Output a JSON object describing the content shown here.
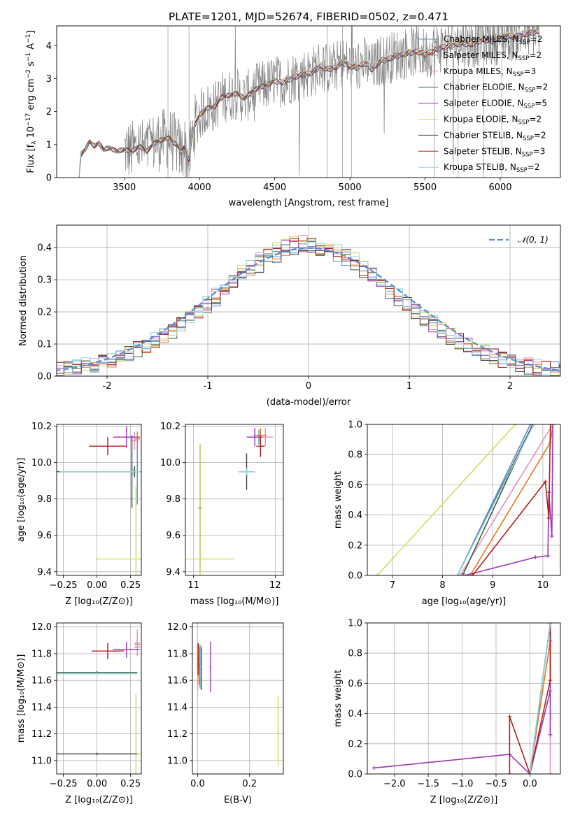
{
  "chart_data": [
    {
      "id": "spectrum",
      "type": "line",
      "title": "PLATE=1201, MJD=52674, FIBERID=0502, z=0.471",
      "xlabel": "wavelength [Angstrom, rest frame]",
      "ylabel": "Flux [f$_\\lambda$ 10$^{-17}$ erg cm$^{-2}$ s$^{-1}$ A$^{-1}$]",
      "ylabel_parts": {
        "a": "Flux [f",
        "b": "λ",
        "c": "10",
        "d": "−17",
        "e": " erg cm",
        "f": "−2",
        "g": " s",
        "h": "−1",
        "i": " A",
        "j": "−1",
        "k": "]"
      },
      "xlim": [
        3050,
        6400
      ],
      "ylim": [
        0,
        4.6
      ],
      "xticks": [
        3500,
        4000,
        4500,
        5000,
        5500,
        6000
      ],
      "yticks": [
        0,
        1,
        2,
        3,
        4
      ],
      "grid": false,
      "legend_position": "top-right",
      "data_color": "#808080",
      "model_envelope": [
        [
          3200,
          0
        ],
        [
          3210,
          0.7
        ],
        [
          3240,
          0.85
        ],
        [
          3270,
          1.1
        ],
        [
          3300,
          0.95
        ],
        [
          3330,
          1.05
        ],
        [
          3360,
          0.85
        ],
        [
          3400,
          0.9
        ],
        [
          3450,
          0.8
        ],
        [
          3500,
          0.85
        ],
        [
          3550,
          0.8
        ],
        [
          3600,
          0.95
        ],
        [
          3650,
          0.8
        ],
        [
          3700,
          1.05
        ],
        [
          3750,
          1.15
        ],
        [
          3800,
          1.2
        ],
        [
          3830,
          1.05
        ],
        [
          3850,
          1.0
        ],
        [
          3880,
          0.75
        ],
        [
          3900,
          0.95
        ],
        [
          3930,
          0.5
        ],
        [
          3950,
          1.2
        ],
        [
          3970,
          1.6
        ],
        [
          4000,
          1.9
        ],
        [
          4050,
          2.1
        ],
        [
          4100,
          2.15
        ],
        [
          4150,
          2.45
        ],
        [
          4200,
          2.5
        ],
        [
          4250,
          2.55
        ],
        [
          4300,
          2.4
        ],
        [
          4350,
          2.6
        ],
        [
          4400,
          2.75
        ],
        [
          4450,
          2.8
        ],
        [
          4500,
          2.95
        ],
        [
          4550,
          2.9
        ],
        [
          4600,
          3.0
        ],
        [
          4650,
          3.1
        ],
        [
          4700,
          3.15
        ],
        [
          4750,
          3.2
        ],
        [
          4800,
          3.4
        ],
        [
          4850,
          3.3
        ],
        [
          4900,
          3.35
        ],
        [
          4950,
          3.5
        ],
        [
          5000,
          3.4
        ],
        [
          5050,
          3.35
        ],
        [
          5100,
          3.5
        ],
        [
          5150,
          3.3
        ],
        [
          5200,
          3.55
        ],
        [
          5250,
          3.6
        ],
        [
          5300,
          3.7
        ],
        [
          5350,
          3.75
        ],
        [
          5400,
          3.8
        ],
        [
          5450,
          3.85
        ],
        [
          5500,
          3.75
        ],
        [
          5550,
          3.85
        ],
        [
          5600,
          3.95
        ],
        [
          5650,
          4.0
        ],
        [
          5700,
          4.05
        ],
        [
          5750,
          4.1
        ],
        [
          5800,
          4.05
        ],
        [
          5850,
          4.15
        ],
        [
          5900,
          4.2
        ],
        [
          5950,
          4.15
        ],
        [
          6000,
          4.25
        ],
        [
          6050,
          4.3
        ],
        [
          6100,
          4.3
        ],
        [
          6150,
          4.35
        ],
        [
          6200,
          4.4
        ],
        [
          6250,
          4.45
        ]
      ],
      "series": [
        {
          "name": "Chabrier MILES, N$_{SSP}$=2",
          "label_main": "Chabrier MILES, N",
          "label_sub": "SSP",
          "label_tail": "=2",
          "color": "#5b8bd8"
        },
        {
          "name": "Salpeter MILES, N$_{SSP}$=2",
          "label_main": "Salpeter MILES, N",
          "label_sub": "SSP",
          "label_tail": "=2",
          "color": "#e8771e"
        },
        {
          "name": "Kroupa MILES, N$_{SSP}$=3",
          "label_main": "Kroupa MILES, N",
          "label_sub": "SSP",
          "label_tail": "=3",
          "color": "#e68fc0"
        },
        {
          "name": "Chabrier ELODIE, N$_{SSP}$=2",
          "label_main": "Chabrier ELODIE, N",
          "label_sub": "SSP",
          "label_tail": "=2",
          "color": "#3a5f3a"
        },
        {
          "name": "Salpeter ELODIE, N$_{SSP}$=5",
          "label_main": "Salpeter ELODIE, N",
          "label_sub": "SSP",
          "label_tail": "=5",
          "color": "#9c36b5"
        },
        {
          "name": "Kroupa ELODIE, N$_{SSP}$=2",
          "label_main": "Kroupa ELODIE, N",
          "label_sub": "SSP",
          "label_tail": "=2",
          "color": "#c5e35c"
        },
        {
          "name": "Chabrier STELIB, N$_{SSP}$=2",
          "label_main": "Chabrier STELIB, N",
          "label_sub": "SSP",
          "label_tail": "=2",
          "color": "#444444"
        },
        {
          "name": "Salpeter STELIB, N$_{SSP}$=3",
          "label_main": "Salpeter STELIB, N",
          "label_sub": "SSP",
          "label_tail": "=3",
          "color": "#b01f1f"
        },
        {
          "name": "Kroupa STELIB, N$_{SSP}$=2",
          "label_main": "Kroupa STELIB, N",
          "label_sub": "SSP",
          "label_tail": "=2",
          "color": "#8fd3dc"
        }
      ]
    },
    {
      "id": "residuals",
      "type": "line",
      "xlabel": "(data-model)/error",
      "ylabel": "Normed distribution",
      "xlim": [
        -2.5,
        2.5
      ],
      "ylim": [
        0,
        0.47
      ],
      "xticks": [
        -2,
        -1,
        0,
        1,
        2
      ],
      "yticks": [
        0.0,
        0.1,
        0.2,
        0.3,
        0.4
      ],
      "grid": true,
      "legend_position": "top-right",
      "gaussian_label": "$\\mathcal{N}(0,1)$",
      "gaussian_label_text": "𝒩(0, 1)",
      "gaussian_color": "#5b8bd8",
      "histogram_center": [
        0.017,
        0.02,
        0.023,
        0.027,
        0.032,
        0.038,
        0.044,
        0.052,
        0.061,
        0.071,
        0.083,
        0.096,
        0.11,
        0.126,
        0.144,
        0.162,
        0.182,
        0.203,
        0.225,
        0.247,
        0.27,
        0.293,
        0.314,
        0.335,
        0.354,
        0.371,
        0.385,
        0.397,
        0.405,
        0.41,
        0.41,
        0.405,
        0.397,
        0.385,
        0.371,
        0.354,
        0.335,
        0.314,
        0.293,
        0.27,
        0.247,
        0.225,
        0.203,
        0.182,
        0.162,
        0.144,
        0.126,
        0.11,
        0.096,
        0.083,
        0.071,
        0.061,
        0.052,
        0.044,
        0.038,
        0.032,
        0.027,
        0.023,
        0.02,
        0.017
      ]
    },
    {
      "id": "age-vs-Z",
      "type": "scatter",
      "xlabel": "Z [log$_{10}$(Z/Z$_\\odot$)]",
      "xlabel_text": "Z [log₁₀(Z/Z⊙)]",
      "ylabel": "age  [log$_{10}$(age/yr)]",
      "ylabel_text": "age  [log₁₀(age/yr)]",
      "xlim": [
        -0.3,
        0.33
      ],
      "ylim": [
        9.38,
        10.21
      ],
      "xticks": [
        -0.25,
        0.0,
        0.25
      ],
      "xticklabels": [
        "−0.25",
        "0.00",
        "0.25"
      ],
      "yticks": [
        9.4,
        9.6,
        9.8,
        10.0,
        10.2
      ],
      "grid": true
    },
    {
      "id": "age-vs-mass",
      "type": "scatter",
      "xlabel": "mass [log$_{10}$(M/M$_\\odot$)]",
      "xlabel_text": "mass [log₁₀(M/M⊙)]",
      "xlim": [
        10.9,
        12.1
      ],
      "ylim": [
        9.38,
        10.21
      ],
      "xticks": [
        11,
        12
      ],
      "yticks": [
        9.4,
        9.6,
        9.8,
        10.0,
        10.2
      ],
      "grid": true
    },
    {
      "id": "massweight-vs-age",
      "type": "line",
      "xlabel": "age  [log$_{10}$(age/yr)]",
      "xlabel_text": "age  [log₁₀(age/yr)]",
      "ylabel": "mass weight",
      "xlim": [
        6.5,
        10.35
      ],
      "ylim": [
        0,
        1.0
      ],
      "xticks": [
        7,
        8,
        9,
        10
      ],
      "yticks": [
        0.0,
        0.2,
        0.4,
        0.6,
        0.8,
        1.0
      ],
      "grid": true
    },
    {
      "id": "mass-vs-Z",
      "type": "scatter",
      "xlabel": "Z [log$_{10}$(Z/Z$_\\odot$)]",
      "xlabel_text": "Z [log₁₀(Z/Z⊙)]",
      "ylabel": "mass [log$_{10}$(M/M$_\\odot$)]",
      "ylabel_text": "mass [log₁₀(M/M⊙)]",
      "xlim": [
        -0.3,
        0.33
      ],
      "ylim": [
        10.9,
        12.03
      ],
      "xticks": [
        -0.25,
        0.0,
        0.25
      ],
      "xticklabels": [
        "−0.25",
        "0.00",
        "0.25"
      ],
      "yticks": [
        11.0,
        11.2,
        11.4,
        11.6,
        11.8,
        12.0
      ],
      "grid": true
    },
    {
      "id": "mass-vs-EBV",
      "type": "scatter",
      "xlabel": "E(B-V)",
      "xlim": [
        -0.02,
        0.33
      ],
      "ylim": [
        10.9,
        12.03
      ],
      "xticks": [
        0.0,
        0.2
      ],
      "xticklabels": [
        "0.0",
        "0.2"
      ],
      "yticks": [
        11.0,
        11.2,
        11.4,
        11.6,
        11.8,
        12.0
      ],
      "grid": true
    },
    {
      "id": "massweight-vs-Z",
      "type": "line",
      "xlabel": "Z [log$_{10}$(Z/Z$_\\odot$)]",
      "xlabel_text": "Z [log₁₀(Z/Z⊙)]",
      "ylabel": "mass weight",
      "xlim": [
        -2.4,
        0.45
      ],
      "ylim": [
        0,
        1.0
      ],
      "xticks": [
        -2.0,
        -1.5,
        -1.0,
        -0.5,
        0.0
      ],
      "xticklabels": [
        "−2.0",
        "−1.5",
        "−1.0",
        "−0.5",
        "0.0"
      ],
      "yticks": [
        0.0,
        0.2,
        0.4,
        0.6,
        0.8,
        1.0
      ],
      "grid": true
    }
  ],
  "model_points": {
    "age_Z": [
      {
        "c": 0,
        "x": 0.3,
        "y": 9.95,
        "xe": 0.3,
        "ye": 0.18
      },
      {
        "c": 1,
        "x": 0.3,
        "y": 10.13,
        "xe": 0.02,
        "ye": 0.04
      },
      {
        "c": 2,
        "x": 0.28,
        "y": 10.12,
        "xe": 0.03,
        "ye": 0.05
      },
      {
        "c": 3,
        "x": 0.28,
        "y": 9.95,
        "xe": 0.58,
        "ye": 0.03
      },
      {
        "c": 4,
        "x": 0.22,
        "y": 10.14,
        "xe": 0.1,
        "ye": 0.06
      },
      {
        "c": 5,
        "x": 0.29,
        "y": 9.47,
        "xe": 0.3,
        "ye": 0.4
      },
      {
        "c": 6,
        "x": 0.26,
        "y": 9.95,
        "xe": 0.55,
        "ye": 0.2
      },
      {
        "c": 7,
        "x": 0.08,
        "y": 10.09,
        "xe": 0.14,
        "ye": 0.05
      },
      {
        "c": 8,
        "x": 0.27,
        "y": 9.95,
        "xe": 0.55,
        "ye": 0.02
      }
    ],
    "age_mass": [
      {
        "c": 0,
        "x": 11.8,
        "y": 10.14,
        "xe": 0.08,
        "ye": 0.04
      },
      {
        "c": 1,
        "x": 11.82,
        "y": 10.15,
        "xe": 0.08,
        "ye": 0.04
      },
      {
        "c": 2,
        "x": 11.88,
        "y": 10.14,
        "xe": 0.1,
        "ye": 0.05
      },
      {
        "c": 3,
        "x": 11.08,
        "y": 9.75,
        "xe": 0.02,
        "ye": 0.35
      },
      {
        "c": 4,
        "x": 11.75,
        "y": 10.14,
        "xe": 0.1,
        "ye": 0.05
      },
      {
        "c": 5,
        "x": 11.08,
        "y": 9.47,
        "xe": 0.42,
        "ye": 0.63
      },
      {
        "c": 6,
        "x": 11.65,
        "y": 9.95,
        "xe": 0.1,
        "ye": 0.1
      },
      {
        "c": 7,
        "x": 11.82,
        "y": 10.09,
        "xe": 0.05,
        "ye": 0.06
      },
      {
        "c": 8,
        "x": 11.65,
        "y": 9.95,
        "xe": 0.1,
        "ye": 0.02
      }
    ],
    "mass_Z": [
      {
        "c": 0,
        "x": 0.3,
        "y": 11.85,
        "xe": 0.02,
        "ye": 0.06
      },
      {
        "c": 1,
        "x": 0.3,
        "y": 11.87,
        "xe": 0.02,
        "ye": 0.05
      },
      {
        "c": 2,
        "x": 0.3,
        "y": 11.88,
        "xe": 0.02,
        "ye": 0.1
      },
      {
        "c": 3,
        "x": 0.0,
        "y": 11.66,
        "xe": 0.3,
        "ye": 0.01
      },
      {
        "c": 4,
        "x": 0.22,
        "y": 11.83,
        "xe": 0.1,
        "ye": 0.06
      },
      {
        "c": 5,
        "x": 0.29,
        "y": 11.05,
        "xe": 0.3,
        "ye": 0.45
      },
      {
        "c": 6,
        "x": 0.0,
        "y": 11.05,
        "xe": 0.3,
        "ye": 0.01
      },
      {
        "c": 7,
        "x": 0.08,
        "y": 11.82,
        "xe": 0.12,
        "ye": 0.06
      },
      {
        "c": 8,
        "x": 0.0,
        "y": 11.65,
        "xe": 0.3,
        "ye": 0.01
      }
    ],
    "mass_EBV": [
      {
        "c": 0,
        "x": 0.01,
        "y": 11.7,
        "xe": 0.003,
        "ye": 0.16
      },
      {
        "c": 1,
        "x": 0.005,
        "y": 11.72,
        "xe": 0.003,
        "ye": 0.15
      },
      {
        "c": 2,
        "x": 0.0,
        "y": 11.7,
        "xe": 0.003,
        "ye": 0.18
      },
      {
        "c": 3,
        "x": 0.01,
        "y": 11.7,
        "xe": 0.003,
        "ye": 0.15
      },
      {
        "c": 4,
        "x": 0.05,
        "y": 11.7,
        "xe": 0.003,
        "ye": 0.19
      },
      {
        "c": 5,
        "x": 0.31,
        "y": 11.22,
        "xe": 0.003,
        "ye": 0.26
      },
      {
        "c": 6,
        "x": 0.015,
        "y": 11.69,
        "xe": 0.003,
        "ye": 0.16
      },
      {
        "c": 7,
        "x": 0.002,
        "y": 11.76,
        "xe": 0.003,
        "ye": 0.12
      },
      {
        "c": 8,
        "x": 0.012,
        "y": 11.7,
        "xe": 0.003,
        "ye": 0.17
      }
    ],
    "weight_age": [
      {
        "c": 0,
        "pts": [
          [
            8.3,
            0.0
          ],
          [
            9.75,
            1.0
          ]
        ]
      },
      {
        "c": 1,
        "pts": [
          [
            8.55,
            0.0
          ],
          [
            10.15,
            0.88
          ],
          [
            10.2,
            1.0
          ]
        ]
      },
      {
        "c": 2,
        "pts": [
          [
            8.35,
            0.0
          ],
          [
            10.2,
            1.0
          ]
        ]
      },
      {
        "c": 3,
        "pts": [
          [
            8.4,
            0.0
          ],
          [
            9.8,
            1.0
          ]
        ]
      },
      {
        "c": 4,
        "pts": [
          [
            8.45,
            0.0
          ],
          [
            9.85,
            0.12
          ],
          [
            10.1,
            0.13
          ],
          [
            10.12,
            0.55
          ],
          [
            10.18,
            0.26
          ],
          [
            10.2,
            1.0
          ]
        ]
      },
      {
        "c": 5,
        "pts": [
          [
            6.7,
            0.0
          ],
          [
            9.45,
            1.0
          ]
        ]
      },
      {
        "c": 6,
        "pts": [
          [
            8.3,
            0.0
          ],
          [
            9.8,
            1.0
          ]
        ]
      },
      {
        "c": 7,
        "pts": [
          [
            8.6,
            0.0
          ],
          [
            10.05,
            0.62
          ],
          [
            10.12,
            0.38
          ],
          [
            10.15,
            1.0
          ]
        ]
      },
      {
        "c": 8,
        "pts": [
          [
            8.3,
            0.0
          ],
          [
            9.82,
            1.0
          ]
        ]
      }
    ],
    "weight_Z": [
      {
        "c": 0,
        "pts": [
          [
            0.0,
            0.0
          ],
          [
            0.3,
            1.0
          ]
        ]
      },
      {
        "c": 1,
        "pts": [
          [
            0.0,
            0.0
          ],
          [
            0.3,
            0.88
          ],
          [
            0.3,
            1.0
          ]
        ]
      },
      {
        "c": 2,
        "pts": [
          [
            0.3,
            0.0
          ],
          [
            0.3,
            1.0
          ]
        ]
      },
      {
        "c": 3,
        "pts": [
          [
            0.0,
            0.0
          ],
          [
            0.3,
            1.0
          ]
        ]
      },
      {
        "c": 4,
        "pts": [
          [
            -2.3,
            0.04
          ],
          [
            -0.3,
            0.13
          ],
          [
            0.0,
            0.0
          ],
          [
            0.3,
            0.55
          ],
          [
            0.3,
            0.26
          ],
          [
            0.3,
            1.0
          ]
        ]
      },
      {
        "c": 5,
        "pts": [
          [
            0.0,
            0.0
          ],
          [
            0.3,
            1.0
          ]
        ]
      },
      {
        "c": 6,
        "pts": [
          [
            0.0,
            0.0
          ],
          [
            0.3,
            1.0
          ]
        ]
      },
      {
        "c": 7,
        "pts": [
          [
            -0.3,
            0.0
          ],
          [
            -0.3,
            0.38
          ],
          [
            0.0,
            0.0
          ],
          [
            0.3,
            0.62
          ],
          [
            0.3,
            1.0
          ]
        ]
      },
      {
        "c": 8,
        "pts": [
          [
            0.0,
            0.0
          ],
          [
            0.3,
            1.0
          ]
        ]
      }
    ]
  }
}
